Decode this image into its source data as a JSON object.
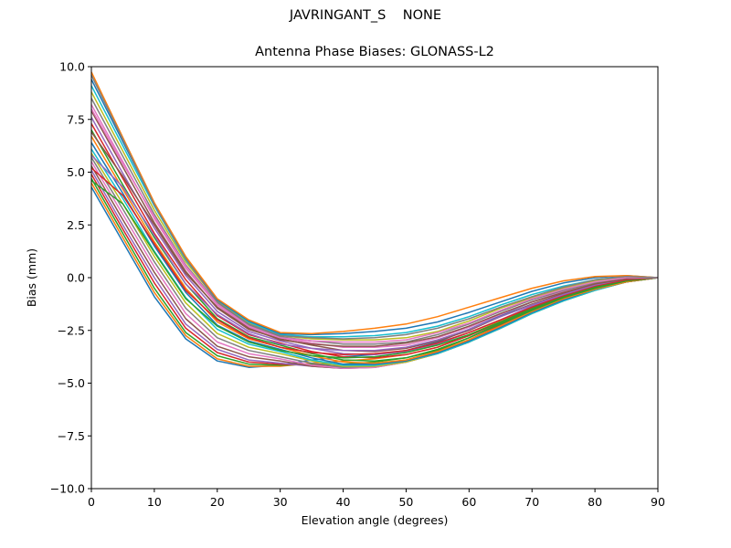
{
  "suptitle": "JAVRINGANT_S    NONE",
  "chart_data": {
    "type": "line",
    "title": "Antenna Phase Biases: GLONASS-L2",
    "xlabel": "Elevation angle (degrees)",
    "ylabel": "Bias (mm)",
    "xlim": [
      0,
      90
    ],
    "ylim": [
      -10,
      10
    ],
    "x_ticks": [
      "0",
      "10",
      "20",
      "30",
      "40",
      "50",
      "60",
      "70",
      "80",
      "90"
    ],
    "y_ticks": [
      "10.0",
      "7.5",
      "5.0",
      "2.5",
      "0.0",
      "−2.5",
      "−5.0",
      "−7.5",
      "−10.0"
    ],
    "grid": false,
    "legend": "none",
    "x": [
      0,
      5,
      10,
      15,
      20,
      25,
      30,
      35,
      40,
      45,
      50,
      55,
      60,
      65,
      70,
      75,
      80,
      85,
      90
    ],
    "series_note_colors": [
      "#1f77b4",
      "#ff7f0e",
      "#2ca02c",
      "#d62728",
      "#9467bd",
      "#8c564b",
      "#e377c2",
      "#7f7f7f",
      "#bcbd22",
      "#17becf"
    ],
    "series": [
      {
        "values": [
          4.3,
          1.7,
          -0.9,
          -2.9,
          -3.95,
          -4.25,
          -4.15,
          -3.9,
          -3.75,
          -3.65,
          -3.45,
          -3.05,
          -2.45,
          -1.8,
          -1.15,
          -0.65,
          -0.3,
          -0.05,
          0.0
        ]
      },
      {
        "values": [
          4.5,
          1.9,
          -0.7,
          -2.75,
          -3.85,
          -4.2,
          -4.2,
          -4.05,
          -3.95,
          -3.85,
          -3.65,
          -3.3,
          -2.7,
          -2.05,
          -1.4,
          -0.85,
          -0.45,
          -0.15,
          0.0
        ]
      },
      {
        "values": [
          4.7,
          2.1,
          -0.5,
          -2.6,
          -3.7,
          -4.1,
          -4.15,
          -4.1,
          -4.1,
          -4.0,
          -3.8,
          -3.45,
          -2.85,
          -2.15,
          -1.5,
          -0.95,
          -0.5,
          -0.2,
          0.0
        ]
      },
      {
        "values": [
          4.9,
          2.3,
          -0.25,
          -2.4,
          -3.55,
          -4.0,
          -4.1,
          -4.15,
          -4.2,
          -4.1,
          -3.9,
          -3.5,
          -2.95,
          -2.25,
          -1.55,
          -1.0,
          -0.55,
          -0.2,
          0.0
        ]
      },
      {
        "values": [
          5.1,
          2.5,
          0.0,
          -2.2,
          -3.4,
          -3.9,
          -4.05,
          -4.2,
          -4.3,
          -4.2,
          -3.95,
          -3.55,
          -3.0,
          -2.3,
          -1.6,
          -1.05,
          -0.55,
          -0.2,
          0.0
        ]
      },
      {
        "values": [
          5.3,
          2.75,
          0.25,
          -1.95,
          -3.25,
          -3.75,
          -3.95,
          -4.2,
          -4.3,
          -4.25,
          -4.0,
          -3.6,
          -3.05,
          -2.35,
          -1.65,
          -1.05,
          -0.55,
          -0.2,
          0.0
        ]
      },
      {
        "values": [
          5.5,
          3.0,
          0.5,
          -1.7,
          -3.05,
          -3.6,
          -3.85,
          -4.15,
          -4.3,
          -4.25,
          -4.0,
          -3.6,
          -3.05,
          -2.4,
          -1.65,
          -1.05,
          -0.55,
          -0.2,
          0.0
        ]
      },
      {
        "values": [
          5.7,
          3.25,
          0.75,
          -1.45,
          -2.85,
          -3.45,
          -3.75,
          -4.05,
          -4.25,
          -4.2,
          -4.0,
          -3.6,
          -3.05,
          -2.4,
          -1.7,
          -1.1,
          -0.6,
          -0.2,
          0.0
        ]
      },
      {
        "values": [
          5.9,
          3.5,
          1.0,
          -1.2,
          -2.65,
          -3.3,
          -3.6,
          -3.95,
          -4.2,
          -4.2,
          -4.0,
          -3.6,
          -3.05,
          -2.4,
          -1.7,
          -1.1,
          -0.6,
          -0.2,
          0.0
        ]
      },
      {
        "values": [
          6.1,
          3.75,
          1.25,
          -0.95,
          -2.45,
          -3.15,
          -3.5,
          -3.9,
          -4.15,
          -4.15,
          -3.95,
          -3.6,
          -3.05,
          -2.4,
          -1.7,
          -1.1,
          -0.6,
          -0.2,
          0.0
        ]
      },
      {
        "values": [
          6.4,
          4.0,
          1.5,
          -0.7,
          -2.25,
          -3.0,
          -3.4,
          -3.8,
          -4.1,
          -4.1,
          -3.95,
          -3.55,
          -3.0,
          -2.35,
          -1.65,
          -1.05,
          -0.55,
          -0.2,
          0.0
        ]
      },
      {
        "values": [
          6.7,
          4.2,
          1.7,
          -0.5,
          -2.1,
          -2.9,
          -3.3,
          -3.7,
          -4.0,
          -4.05,
          -3.9,
          -3.5,
          -2.95,
          -2.3,
          -1.6,
          -1.0,
          -0.55,
          -0.2,
          0.0
        ]
      },
      {
        "values": [
          7.0,
          4.4,
          1.9,
          -0.3,
          -1.95,
          -2.8,
          -3.2,
          -3.6,
          -3.9,
          -3.95,
          -3.8,
          -3.4,
          -2.85,
          -2.2,
          -1.55,
          -0.95,
          -0.5,
          -0.15,
          0.0
        ]
      },
      {
        "values": [
          7.3,
          4.7,
          2.1,
          -0.1,
          -1.8,
          -2.7,
          -3.1,
          -3.5,
          -3.75,
          -3.8,
          -3.65,
          -3.3,
          -2.75,
          -2.1,
          -1.45,
          -0.9,
          -0.45,
          -0.1,
          0.0
        ]
      },
      {
        "values": [
          7.6,
          4.95,
          2.35,
          0.1,
          -1.6,
          -2.55,
          -3.0,
          -3.35,
          -3.6,
          -3.65,
          -3.5,
          -3.15,
          -2.6,
          -2.0,
          -1.35,
          -0.8,
          -0.4,
          -0.1,
          0.0
        ]
      },
      {
        "values": [
          7.9,
          5.25,
          2.6,
          0.3,
          -1.45,
          -2.45,
          -2.9,
          -3.2,
          -3.45,
          -3.5,
          -3.35,
          -3.0,
          -2.5,
          -1.85,
          -1.25,
          -0.75,
          -0.35,
          -0.05,
          0.0
        ]
      },
      {
        "values": [
          8.2,
          5.5,
          2.8,
          0.45,
          -1.3,
          -2.35,
          -2.85,
          -3.1,
          -3.3,
          -3.3,
          -3.2,
          -2.85,
          -2.35,
          -1.75,
          -1.15,
          -0.65,
          -0.3,
          0.0,
          0.0
        ]
      },
      {
        "values": [
          8.5,
          5.75,
          3.0,
          0.6,
          -1.2,
          -2.25,
          -2.8,
          -3.0,
          -3.15,
          -3.15,
          -3.05,
          -2.7,
          -2.2,
          -1.6,
          -1.05,
          -0.6,
          -0.25,
          0.0,
          0.0
        ]
      },
      {
        "values": [
          8.8,
          6.0,
          3.2,
          0.75,
          -1.1,
          -2.15,
          -2.75,
          -2.9,
          -2.95,
          -2.95,
          -2.85,
          -2.55,
          -2.05,
          -1.45,
          -0.95,
          -0.5,
          -0.15,
          0.05,
          0.0
        ]
      },
      {
        "values": [
          9.1,
          6.25,
          3.4,
          0.85,
          -1.05,
          -2.1,
          -2.7,
          -2.8,
          -2.8,
          -2.75,
          -2.6,
          -2.3,
          -1.85,
          -1.3,
          -0.8,
          -0.4,
          -0.1,
          0.05,
          0.0
        ]
      },
      {
        "values": [
          9.4,
          6.45,
          3.5,
          0.95,
          -1.05,
          -2.05,
          -2.65,
          -2.7,
          -2.65,
          -2.55,
          -2.4,
          -2.1,
          -1.65,
          -1.15,
          -0.65,
          -0.25,
          0.0,
          0.1,
          0.0
        ]
      },
      {
        "values": [
          9.75,
          6.65,
          3.55,
          1.0,
          -1.0,
          -2.0,
          -2.6,
          -2.65,
          -2.55,
          -2.4,
          -2.2,
          -1.85,
          -1.4,
          -0.95,
          -0.5,
          -0.15,
          0.05,
          0.1,
          0.0
        ]
      },
      {
        "values": [
          4.6,
          3.5,
          1.2,
          -1.0,
          -2.3,
          -3.05,
          -3.45,
          -3.7,
          -3.8,
          -3.75,
          -3.55,
          -3.2,
          -2.7,
          -2.1,
          -1.45,
          -0.9,
          -0.45,
          -0.15,
          0.0
        ]
      },
      {
        "values": [
          5.2,
          3.9,
          1.6,
          -0.6,
          -2.0,
          -2.85,
          -3.3,
          -3.55,
          -3.65,
          -3.6,
          -3.45,
          -3.1,
          -2.6,
          -2.0,
          -1.4,
          -0.85,
          -0.4,
          -0.1,
          0.0
        ]
      },
      {
        "values": [
          5.8,
          4.3,
          2.0,
          -0.3,
          -1.75,
          -2.65,
          -3.15,
          -3.35,
          -3.45,
          -3.45,
          -3.3,
          -2.95,
          -2.45,
          -1.85,
          -1.3,
          -0.8,
          -0.35,
          -0.05,
          0.0
        ]
      },
      {
        "values": [
          6.9,
          4.8,
          2.5,
          0.2,
          -1.4,
          -2.4,
          -2.95,
          -3.15,
          -3.25,
          -3.25,
          -3.1,
          -2.8,
          -2.3,
          -1.7,
          -1.15,
          -0.7,
          -0.3,
          -0.05,
          0.0
        ]
      },
      {
        "values": [
          8.0,
          5.4,
          2.9,
          0.55,
          -1.25,
          -2.3,
          -2.85,
          -3.0,
          -3.05,
          -3.05,
          -2.95,
          -2.6,
          -2.15,
          -1.55,
          -1.0,
          -0.55,
          -0.2,
          0.0,
          0.0
        ]
      },
      {
        "values": [
          9.6,
          6.55,
          3.45,
          0.9,
          -1.15,
          -2.2,
          -2.75,
          -2.85,
          -2.9,
          -2.85,
          -2.7,
          -2.4,
          -1.95,
          -1.4,
          -0.9,
          -0.45,
          -0.1,
          0.05,
          0.0
        ]
      }
    ]
  }
}
